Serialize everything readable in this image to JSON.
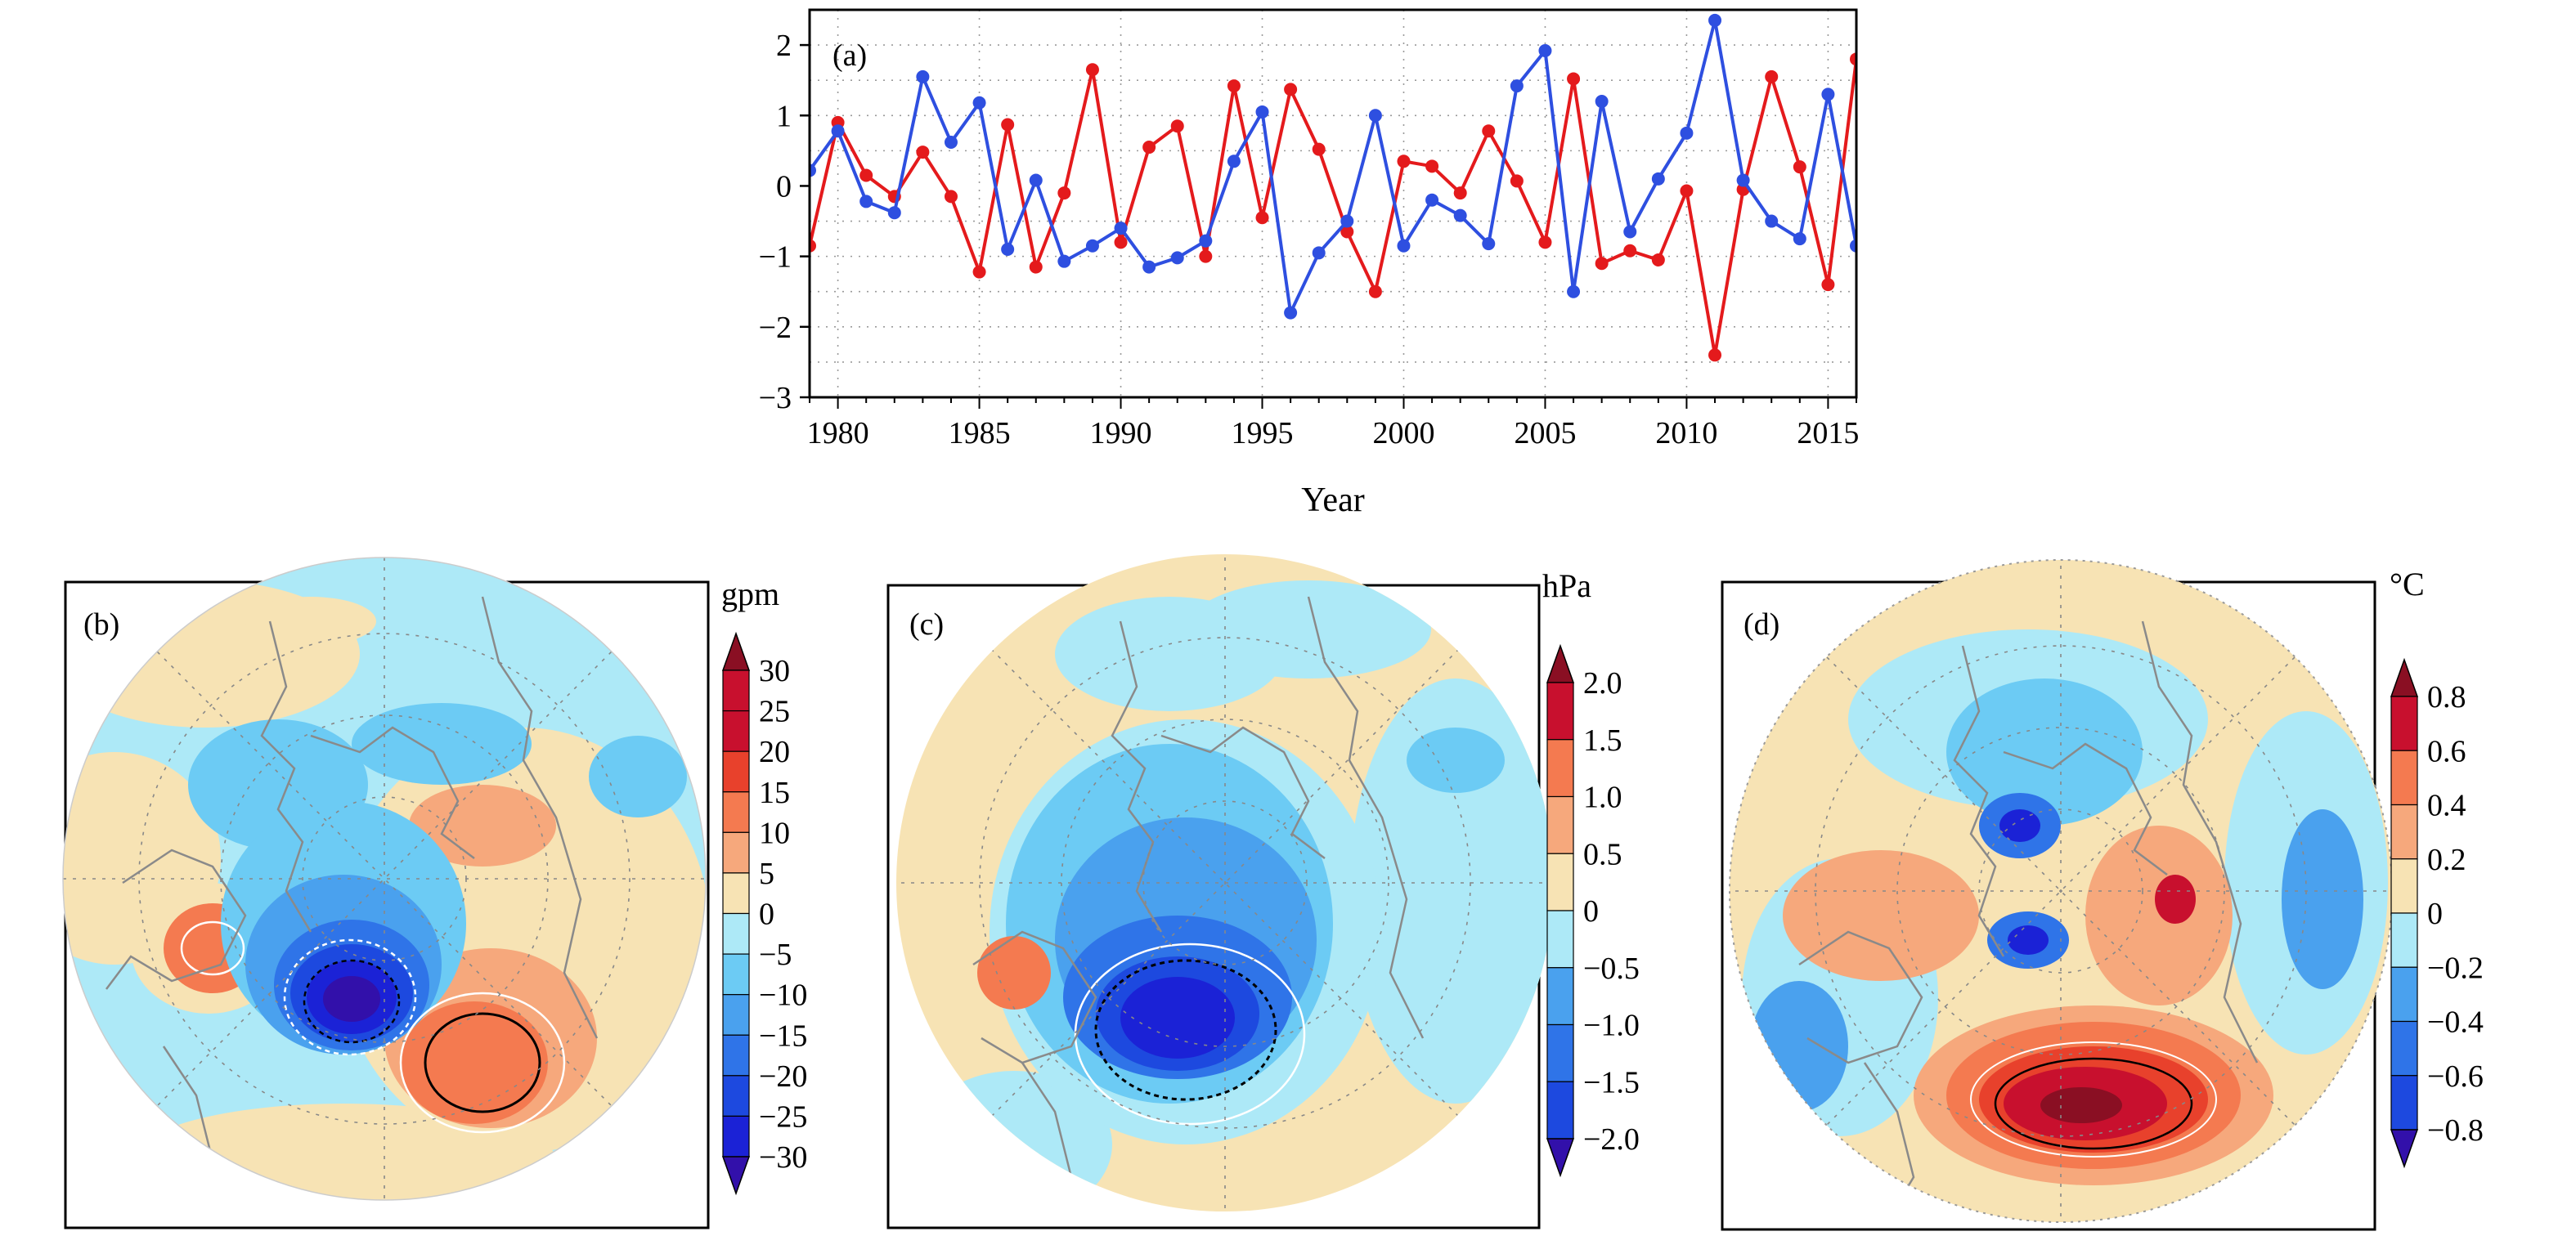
{
  "panel_a": {
    "label": "(a)",
    "xlabel": "Year",
    "colors": {
      "red_series": "#e41a1c",
      "blue_series": "#2e4fe0"
    }
  },
  "panel_b": {
    "label": "(b)",
    "unit": "gpm",
    "ticks": [
      "30",
      "25",
      "20",
      "15",
      "10",
      "5",
      "0",
      "−5",
      "−10",
      "−15",
      "−20",
      "−25",
      "−30"
    ]
  },
  "panel_c": {
    "label": "(c)",
    "unit": "hPa",
    "ticks": [
      "2.0",
      "1.5",
      "1.0",
      "0.5",
      "0",
      "−0.5",
      "−1.0",
      "−1.5",
      "−2.0"
    ]
  },
  "panel_d": {
    "label": "(d)",
    "unit": "°C",
    "ticks": [
      "0.8",
      "0.6",
      "0.4",
      "0.2",
      "0",
      "−0.2",
      "−0.4",
      "−0.6",
      "−0.8"
    ]
  },
  "colorbar_palette": [
    "#8a0f23",
    "#c8102e",
    "#e8412c",
    "#f47a50",
    "#f6a87c",
    "#f7e3b4",
    "#ade9f7",
    "#6ccbf4",
    "#4aa1ee",
    "#2f74e8",
    "#1d49df",
    "#1b22d6",
    "#3210aa"
  ],
  "chart_data": [
    {
      "type": "line",
      "x": [
        1979,
        1980,
        1981,
        1982,
        1983,
        1984,
        1985,
        1986,
        1987,
        1988,
        1989,
        1990,
        1991,
        1992,
        1993,
        1994,
        1995,
        1996,
        1997,
        1998,
        1999,
        2000,
        2001,
        2002,
        2003,
        2004,
        2005,
        2006,
        2007,
        2008,
        2009,
        2010,
        2011,
        2012,
        2013,
        2014,
        2015,
        2016
      ],
      "xlim": [
        1979,
        2016
      ],
      "ylim": [
        -3,
        2.5
      ],
      "xticks": [
        1980,
        1985,
        1990,
        1995,
        2000,
        2005,
        2010,
        2015
      ],
      "yticks": [
        2,
        1,
        0,
        -1,
        -2,
        -3
      ],
      "ytick_labels": [
        "2",
        "1",
        "0",
        "−1",
        "−2",
        "−3"
      ],
      "grid": true,
      "series": [
        {
          "values": [
            -0.85,
            0.9,
            0.15,
            -0.15,
            0.48,
            -0.15,
            -1.22,
            0.87,
            -1.15,
            -0.1,
            1.65,
            -0.8,
            0.55,
            0.85,
            -1.0,
            1.42,
            -0.45,
            1.37,
            0.52,
            -0.65,
            -1.5,
            0.35,
            0.28,
            -0.1,
            0.78,
            0.07,
            -0.8,
            1.52,
            -1.1,
            -0.92,
            -1.05,
            -0.07,
            -2.4,
            -0.05,
            1.55,
            0.27,
            -1.4,
            1.8
          ]
        },
        {
          "values": [
            0.22,
            0.78,
            -0.22,
            -0.38,
            1.55,
            0.62,
            1.18,
            -0.9,
            0.08,
            -1.07,
            -0.85,
            -0.6,
            -1.15,
            -1.02,
            -0.78,
            0.35,
            1.05,
            -1.8,
            -0.95,
            -0.5,
            1.0,
            -0.85,
            -0.2,
            -0.42,
            -0.82,
            1.42,
            1.92,
            -1.5,
            1.2,
            -0.65,
            0.1,
            0.75,
            2.35,
            0.08,
            -0.5,
            -0.75,
            1.3,
            -0.85
          ]
        }
      ]
    }
  ]
}
